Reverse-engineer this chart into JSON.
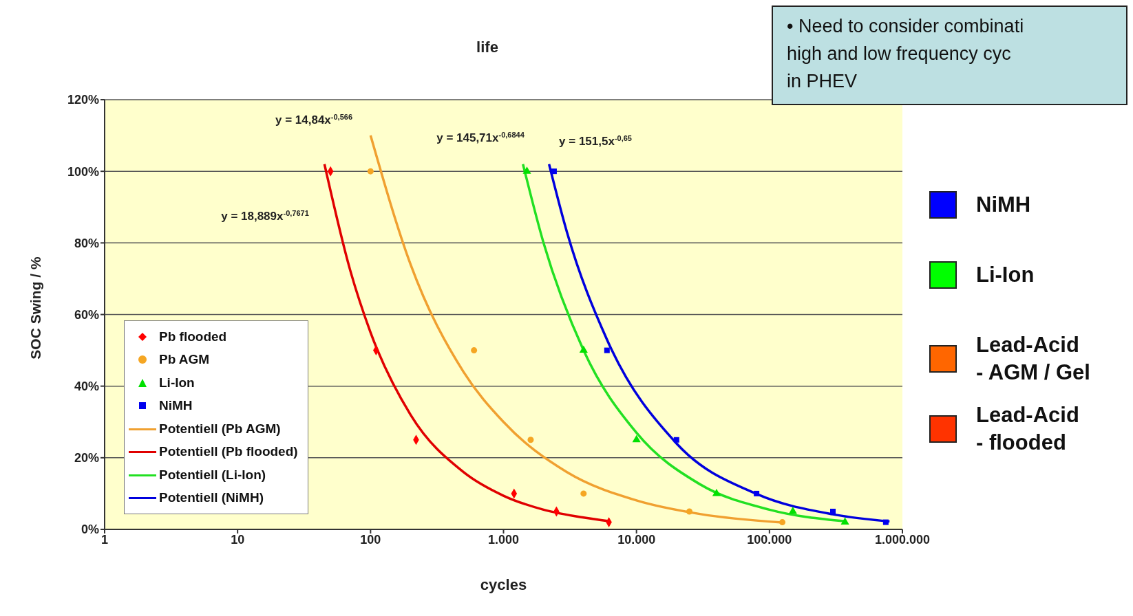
{
  "chart_data": {
    "type": "scatter",
    "title": "life",
    "xlabel": "cycles",
    "ylabel": "SOC Swing / %",
    "log": "x",
    "xlim": [
      1,
      1000000
    ],
    "xticks": [
      1,
      10,
      100,
      {
        "value": 1000,
        "label": "1.000"
      },
      {
        "value": 10000,
        "label": "10.000"
      },
      {
        "value": 100000,
        "label": "100.000"
      },
      {
        "value": 1000000,
        "label": "1.000.000"
      }
    ],
    "ylim": [
      0,
      120
    ],
    "yticks": [
      {
        "value": 0,
        "label": "0%"
      },
      {
        "value": 20,
        "label": "20%"
      },
      {
        "value": 40,
        "label": "40%"
      },
      {
        "value": 60,
        "label": "60%"
      },
      {
        "value": 80,
        "label": "80%"
      },
      {
        "value": 100,
        "label": "100%"
      },
      {
        "value": 120,
        "label": "120%"
      }
    ],
    "grid": "y",
    "legend": "bottom left",
    "series": [
      {
        "name": "Pb flooded",
        "marker": "diamond",
        "color": "#ff0000",
        "x": [
          50,
          110,
          220,
          1200,
          2500,
          6200
        ],
        "values": [
          100,
          50,
          25,
          10,
          5,
          2
        ]
      },
      {
        "name": "Pb AGM",
        "marker": "circle",
        "color": "#f5a623",
        "x": [
          100,
          600,
          1600,
          4000,
          25000,
          125000
        ],
        "values": [
          100,
          50,
          25,
          10,
          5,
          2
        ]
      },
      {
        "name": "Li-Ion",
        "marker": "triangle",
        "color": "#00e000",
        "x": [
          1500,
          4000,
          10000,
          40000,
          150000,
          370000
        ],
        "values": [
          100,
          50,
          25,
          10,
          5,
          2
        ]
      },
      {
        "name": "NiMH",
        "marker": "square",
        "color": "#0000ee",
        "x": [
          2400,
          6000,
          20000,
          80000,
          300000,
          750000
        ],
        "values": [
          100,
          50,
          25,
          10,
          5,
          2
        ]
      },
      {
        "name": "Potentiell (Pb AGM)",
        "type": "line",
        "marker": "none",
        "color": "#f0a030",
        "x": [
          100,
          200,
          500,
          1000,
          3000,
          10000,
          30000,
          125000
        ],
        "values": [
          110,
          74,
          44,
          30,
          16,
          8.1,
          4.3,
          1.9
        ]
      },
      {
        "name": "Potentiell (Pb flooded)",
        "type": "line",
        "marker": "none",
        "color": "#e00000",
        "x": [
          45,
          70,
          100,
          200,
          500,
          1000,
          2000,
          4000,
          6200
        ],
        "values": [
          102,
          72.6,
          55,
          32,
          16,
          9.4,
          5.5,
          3.3,
          2.3
        ]
      },
      {
        "name": "Potentiell (Li-Ion)",
        "type": "line",
        "marker": "none",
        "color": "#22e022",
        "x": [
          1400,
          2000,
          4000,
          10000,
          30000,
          100000,
          380000
        ],
        "values": [
          102,
          80,
          50,
          27,
          12.6,
          5.5,
          2.2
        ]
      },
      {
        "name": "Potentiell (NiMH)",
        "type": "line",
        "marker": "none",
        "color": "#0000dd",
        "x": [
          2200,
          3000,
          6000,
          20000,
          80000,
          300000,
          800000
        ],
        "values": [
          102,
          83,
          53,
          24,
          9.9,
          4.2,
          2.2
        ]
      }
    ],
    "annotations": [
      "y = 14,84x$^{-0,566}$",
      "y = 18,889x$^{-0,7671}$",
      "y = 145,71x$^{-0,6844}$",
      "y = 151,5x$^{-0,65}$",
      "NiMH",
      "Li-Ion",
      "Lead-Acid\n- AGM / Gel",
      "Lead-Acid\n- flooded",
      "• Need to consider combinati\nhigh and low frequency cyc\nin PHEV"
    ]
  }
}
